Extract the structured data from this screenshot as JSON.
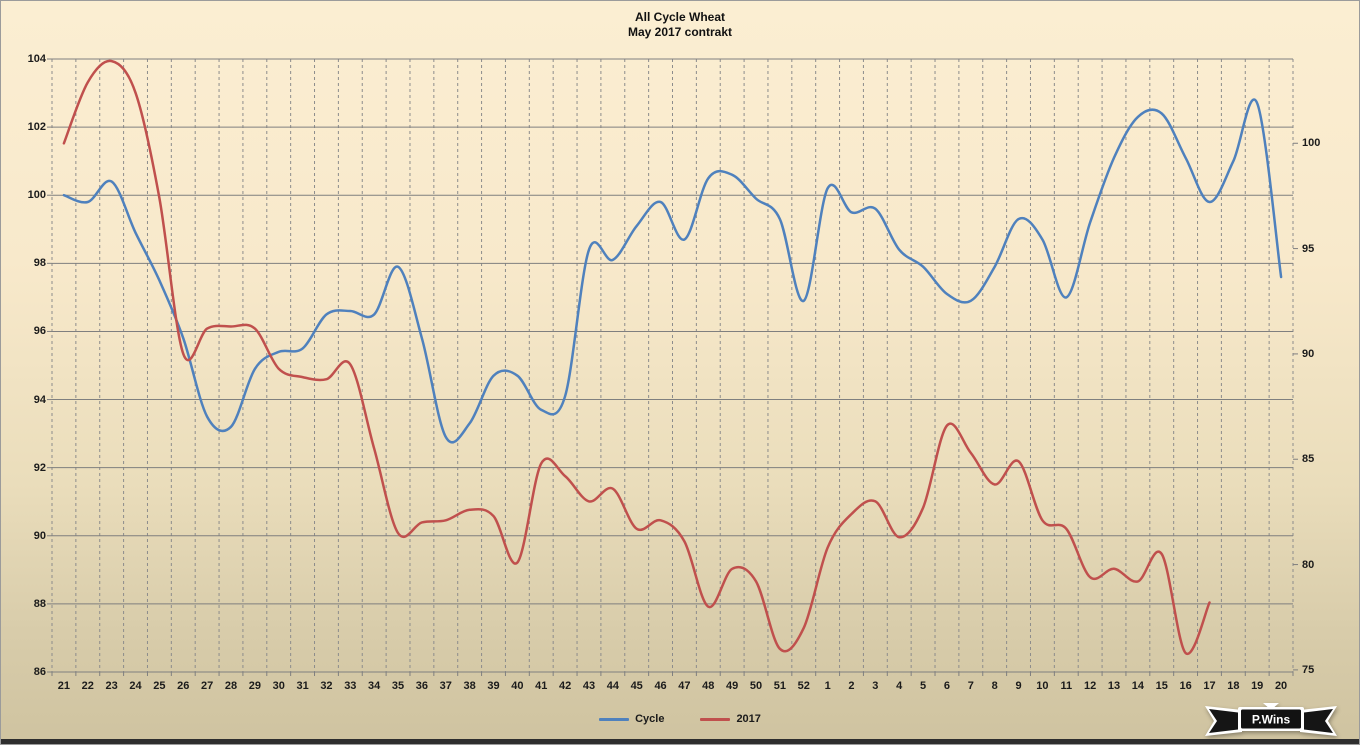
{
  "page": {
    "background_top": "#FBEED2",
    "background_bottom": "#CFC3A0",
    "gridline_color": "#7f7f7f"
  },
  "chart_data": {
    "type": "line",
    "title_line1": "All Cycle Wheat",
    "title_line2": "May 2017 contrakt",
    "x_categories": [
      "21",
      "22",
      "23",
      "24",
      "25",
      "26",
      "27",
      "28",
      "29",
      "30",
      "31",
      "32",
      "33",
      "34",
      "35",
      "36",
      "37",
      "38",
      "39",
      "40",
      "41",
      "42",
      "43",
      "44",
      "45",
      "46",
      "47",
      "48",
      "49",
      "50",
      "51",
      "52",
      "1",
      "2",
      "3",
      "4",
      "5",
      "6",
      "7",
      "8",
      "9",
      "10",
      "11",
      "12",
      "13",
      "14",
      "15",
      "16",
      "17",
      "18",
      "19",
      "20"
    ],
    "left_axis": {
      "min": 86,
      "max": 104,
      "ticks": [
        86,
        88,
        90,
        92,
        94,
        96,
        98,
        100,
        102,
        104
      ]
    },
    "right_axis": {
      "min": 74.9,
      "max": 104,
      "ticks": [
        75,
        80,
        85,
        90,
        95,
        100
      ]
    },
    "grid": {
      "horizontal_solid": true,
      "vertical_dashed": true
    },
    "legend_position": "bottom",
    "series": [
      {
        "name": "Cycle",
        "axis": "left",
        "color": "#4F81BD",
        "values": [
          100.0,
          99.8,
          100.4,
          98.9,
          97.5,
          95.8,
          93.5,
          93.2,
          94.9,
          95.4,
          95.5,
          96.5,
          96.6,
          96.5,
          97.9,
          95.8,
          92.9,
          93.3,
          94.7,
          94.7,
          93.7,
          94.1,
          98.4,
          98.1,
          99.1,
          99.8,
          98.7,
          100.5,
          100.6,
          99.9,
          99.3,
          96.9,
          100.2,
          99.5,
          99.6,
          98.4,
          97.9,
          97.1,
          96.9,
          97.9,
          99.3,
          98.7,
          97.0,
          99.2,
          101.1,
          102.3,
          102.4,
          101.1,
          99.8,
          101.0,
          102.7,
          97.6
        ]
      },
      {
        "name": "2017",
        "axis": "right",
        "color": "#C0504D",
        "values": [
          100.0,
          102.9,
          103.9,
          102.4,
          97.4,
          90.0,
          91.2,
          91.3,
          91.2,
          89.3,
          88.9,
          88.8,
          89.5,
          85.5,
          81.5,
          82.0,
          82.1,
          82.6,
          82.3,
          80.1,
          84.8,
          84.2,
          83.0,
          83.6,
          81.7,
          82.1,
          81.1,
          78.0,
          79.8,
          79.2,
          76.0,
          77.0,
          80.8,
          82.4,
          83.0,
          81.3,
          82.7,
          86.6,
          85.3,
          83.8,
          84.9,
          82.1,
          81.7,
          79.4,
          79.8,
          79.2,
          80.5,
          75.8,
          78.2,
          null,
          null,
          null
        ]
      }
    ]
  },
  "logo": {
    "text": "P.Wins"
  }
}
